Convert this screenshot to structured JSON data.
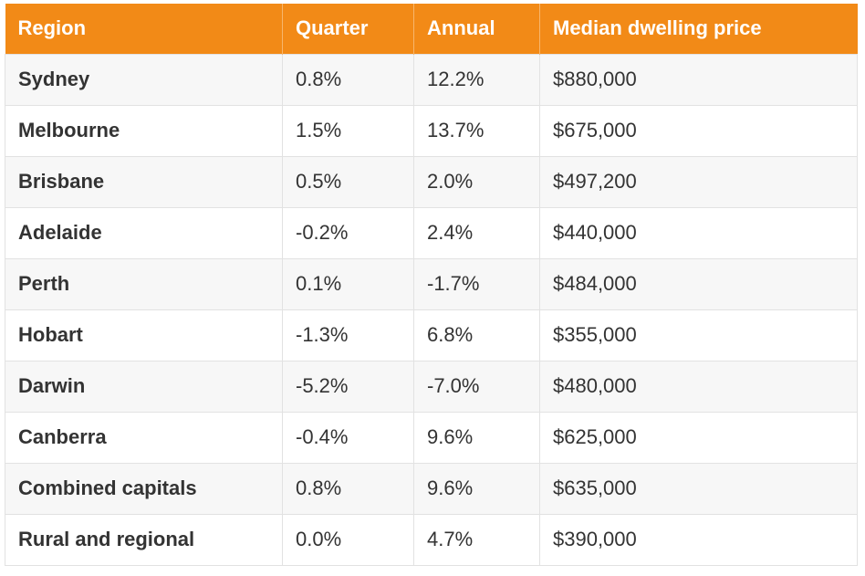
{
  "chart_data": {
    "type": "table",
    "colors": {
      "header_bg": "#f28a17",
      "header_text": "#ffffff",
      "row_alt_bg": "#f7f7f7",
      "grid": "#e2e2e2",
      "text": "#333333"
    },
    "columns": [
      "Region",
      "Quarter",
      "Annual",
      "Median dwelling price"
    ],
    "rows": [
      [
        "Sydney",
        "0.8%",
        "12.2%",
        "$880,000"
      ],
      [
        "Melbourne",
        "1.5%",
        "13.7%",
        "$675,000"
      ],
      [
        "Brisbane",
        "0.5%",
        "2.0%",
        "$497,200"
      ],
      [
        "Adelaide",
        "-0.2%",
        "2.4%",
        "$440,000"
      ],
      [
        "Perth",
        "0.1%",
        "-1.7%",
        "$484,000"
      ],
      [
        "Hobart",
        "-1.3%",
        "6.8%",
        "$355,000"
      ],
      [
        "Darwin",
        "-5.2%",
        "-7.0%",
        "$480,000"
      ],
      [
        "Canberra",
        "-0.4%",
        "9.6%",
        "$625,000"
      ],
      [
        "Combined capitals",
        "0.8%",
        "9.6%",
        "$635,000"
      ],
      [
        "Rural and regional",
        "0.0%",
        "4.7%",
        "$390,000"
      ]
    ]
  }
}
